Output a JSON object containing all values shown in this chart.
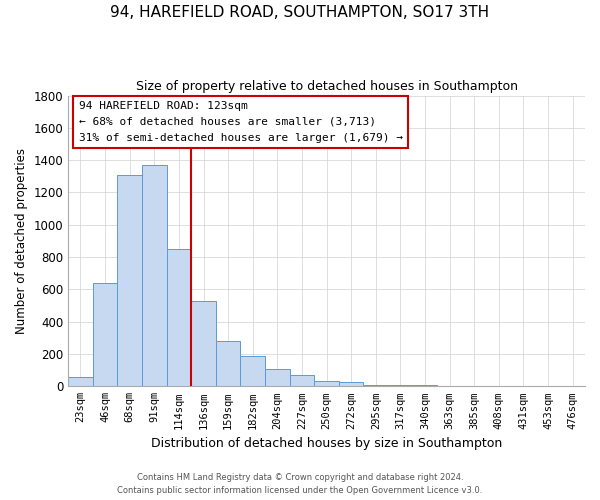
{
  "title": "94, HAREFIELD ROAD, SOUTHAMPTON, SO17 3TH",
  "subtitle": "Size of property relative to detached houses in Southampton",
  "xlabel": "Distribution of detached houses by size in Southampton",
  "ylabel": "Number of detached properties",
  "bar_labels": [
    "23sqm",
    "46sqm",
    "68sqm",
    "91sqm",
    "114sqm",
    "136sqm",
    "159sqm",
    "182sqm",
    "204sqm",
    "227sqm",
    "250sqm",
    "272sqm",
    "295sqm",
    "317sqm",
    "340sqm",
    "363sqm",
    "385sqm",
    "408sqm",
    "431sqm",
    "453sqm",
    "476sqm"
  ],
  "bar_values": [
    55,
    640,
    1310,
    1370,
    850,
    530,
    280,
    185,
    105,
    70,
    35,
    25,
    10,
    10,
    5,
    3,
    2,
    1,
    1,
    0,
    0
  ],
  "bar_color": "#c6d9f0",
  "bar_edgecolor": "#5b9bd5",
  "ylim": [
    0,
    1800
  ],
  "yticks": [
    0,
    200,
    400,
    600,
    800,
    1000,
    1200,
    1400,
    1600,
    1800
  ],
  "property_line_color": "#cc0000",
  "annotation_title": "94 HAREFIELD ROAD: 123sqm",
  "annotation_line1": "← 68% of detached houses are smaller (3,713)",
  "annotation_line2": "31% of semi-detached houses are larger (1,679) →",
  "annotation_box_color": "#ffffff",
  "annotation_box_edgecolor": "#cc0000",
  "footer1": "Contains HM Land Registry data © Crown copyright and database right 2024.",
  "footer2": "Contains public sector information licensed under the Open Government Licence v3.0.",
  "background_color": "#ffffff",
  "grid_color": "#d0d0d0"
}
